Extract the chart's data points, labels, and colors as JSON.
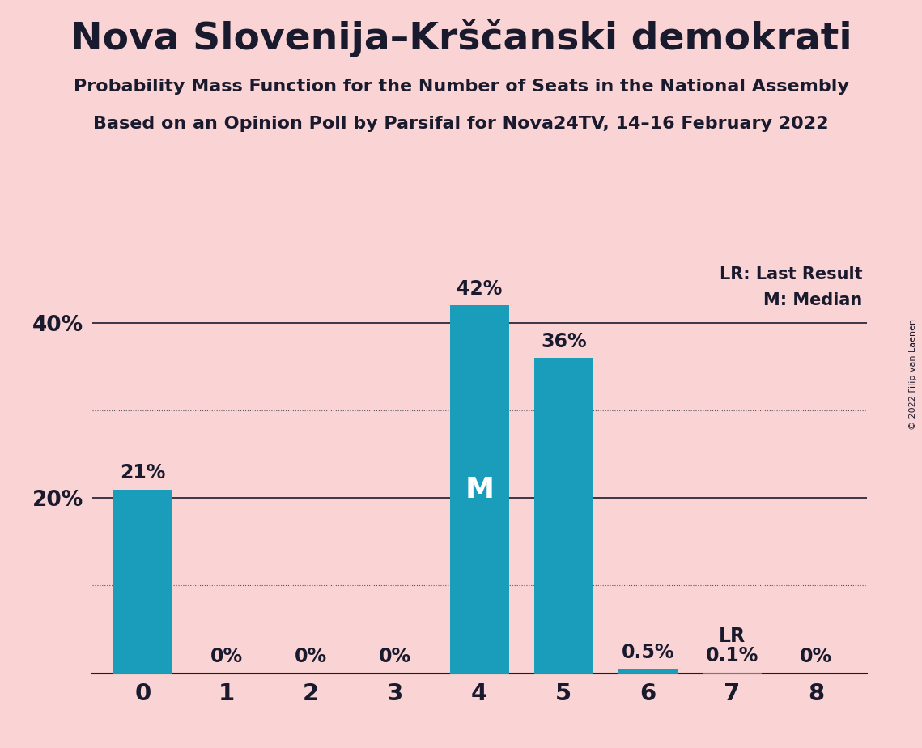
{
  "title": "Nova Slovenija–Krščanski demokrati",
  "subtitle1": "Probability Mass Function for the Number of Seats in the National Assembly",
  "subtitle2": "Based on an Opinion Poll by Parsifal for Nova24TV, 14–16 February 2022",
  "copyright": "© 2022 Filip van Laenen",
  "categories": [
    0,
    1,
    2,
    3,
    4,
    5,
    6,
    7,
    8
  ],
  "values": [
    21,
    0,
    0,
    0,
    42,
    36,
    0.5,
    0.1,
    0
  ],
  "labels": [
    "21%",
    "0%",
    "0%",
    "0%",
    "42%",
    "36%",
    "0.5%",
    "0.1%",
    "0%"
  ],
  "bar_color": "#1a9dba",
  "background_color": "#fad4d4",
  "text_color": "#1a1a2e",
  "median_bar": 4,
  "lr_bar": 7,
  "legend_lr": "LR: Last Result",
  "legend_m": "M: Median",
  "median_label": "M",
  "lr_label": "LR",
  "ymax": 47,
  "grid_lines": [
    10,
    30
  ],
  "solid_lines": [
    20,
    40
  ],
  "ytick_positions": [
    20,
    40
  ],
  "ytick_labels": [
    "20%",
    "40%"
  ]
}
